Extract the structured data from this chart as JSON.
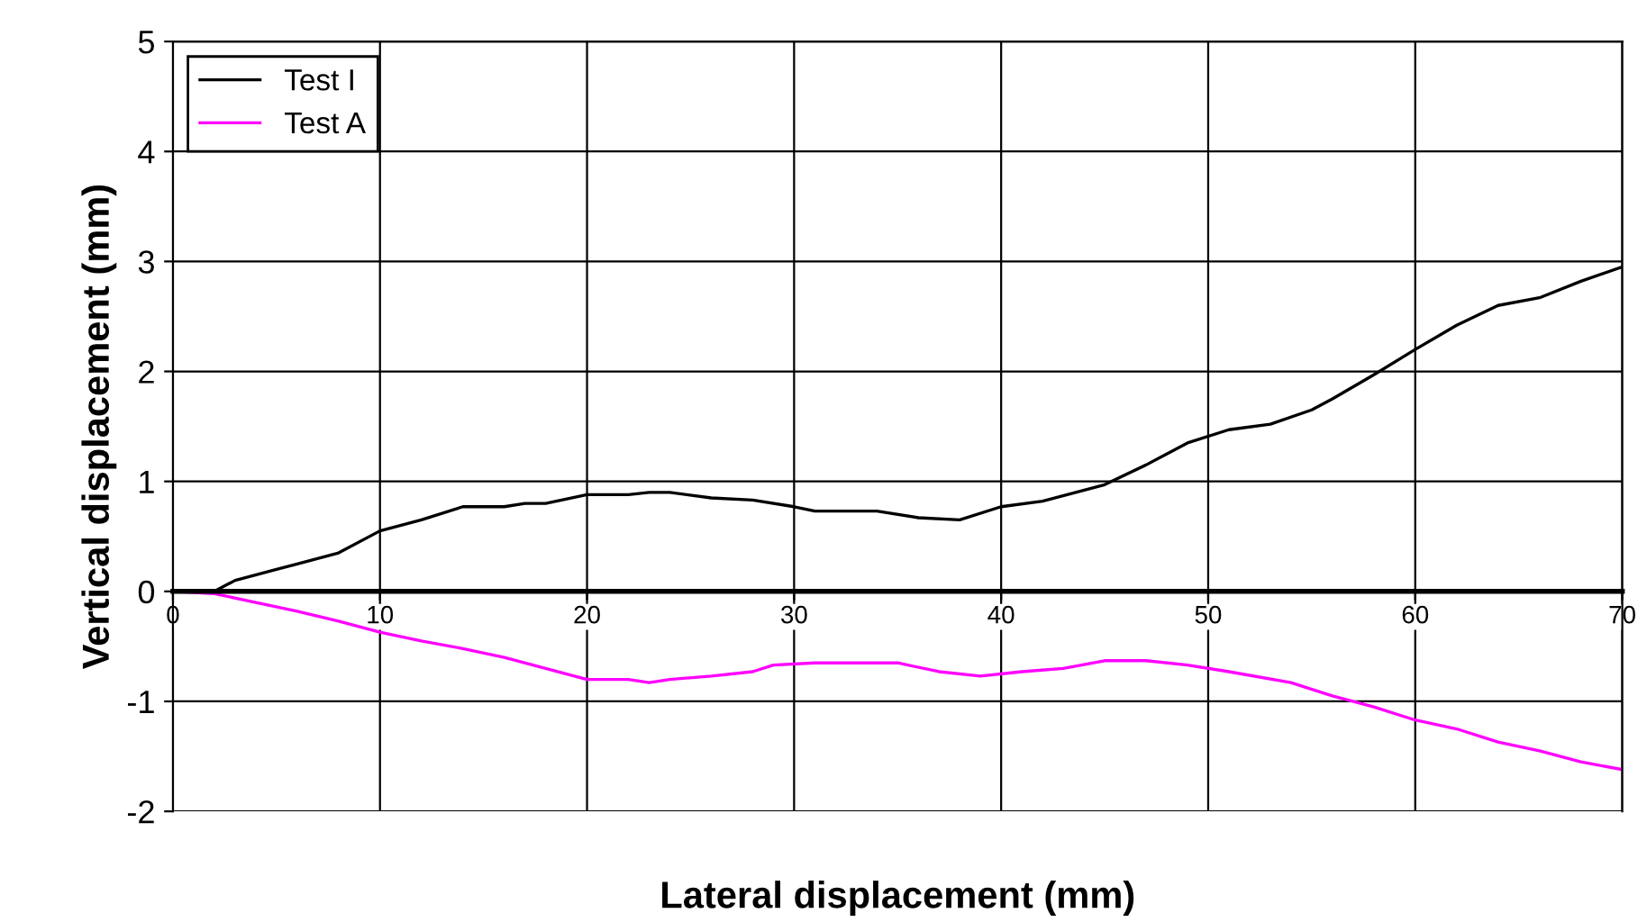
{
  "chart_data": {
    "type": "line",
    "xlabel": "Lateral displacement (mm)",
    "ylabel": "Vertical displacement (mm)",
    "series": [
      {
        "name": "Test I",
        "color": "#000000",
        "x": [
          0,
          2,
          3,
          5,
          6,
          8,
          10,
          12,
          14,
          16,
          17,
          18,
          20,
          22,
          23,
          24,
          26,
          28,
          30,
          31,
          34,
          36,
          38,
          40,
          42,
          45,
          47,
          49,
          51,
          53,
          55,
          56,
          58,
          60,
          62,
          64,
          66,
          68,
          70
        ],
        "values": [
          0,
          0,
          0.1,
          0.2,
          0.25,
          0.35,
          0.55,
          0.65,
          0.77,
          0.77,
          0.8,
          0.8,
          0.88,
          0.88,
          0.9,
          0.9,
          0.85,
          0.83,
          0.77,
          0.73,
          0.73,
          0.67,
          0.65,
          0.77,
          0.82,
          0.97,
          1.15,
          1.35,
          1.47,
          1.52,
          1.65,
          1.75,
          1.97,
          2.2,
          2.42,
          2.6,
          2.67,
          2.82,
          2.95
        ]
      },
      {
        "name": "Test A",
        "color": "#ff00ff",
        "x": [
          0,
          2,
          4,
          6,
          8,
          10,
          12,
          14,
          16,
          18,
          20,
          22,
          23,
          24,
          26,
          28,
          29,
          31,
          35,
          37,
          39,
          41,
          43,
          45,
          47,
          49,
          51,
          54,
          56,
          58,
          60,
          62,
          64,
          66,
          68,
          70
        ],
        "values": [
          0,
          -0.02,
          -0.1,
          -0.18,
          -0.27,
          -0.37,
          -0.45,
          -0.52,
          -0.6,
          -0.7,
          -0.8,
          -0.8,
          -0.83,
          -0.8,
          -0.77,
          -0.73,
          -0.67,
          -0.65,
          -0.65,
          -0.73,
          -0.77,
          -0.73,
          -0.7,
          -0.63,
          -0.63,
          -0.67,
          -0.73,
          -0.83,
          -0.95,
          -1.05,
          -1.17,
          -1.25,
          -1.37,
          -1.45,
          -1.55,
          -1.62
        ]
      }
    ],
    "xlim": [
      0,
      70
    ],
    "xticks": [
      0,
      10,
      20,
      30,
      40,
      50,
      60,
      70
    ],
    "ylim": [
      -2,
      5
    ],
    "yticks": [
      -2,
      -1,
      0,
      1,
      2,
      3,
      4,
      5
    ],
    "grid": true,
    "legend": "top left",
    "marker": "none",
    "line_style": "solid"
  }
}
